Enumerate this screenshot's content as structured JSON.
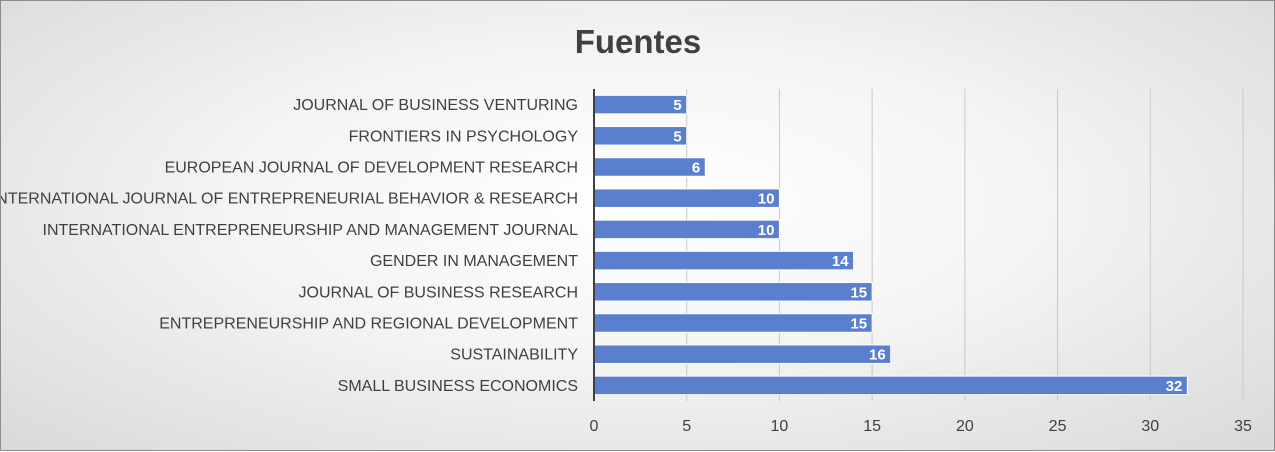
{
  "chart_data": {
    "type": "bar",
    "orientation": "horizontal",
    "title": "Fuentes",
    "categories": [
      "JOURNAL OF BUSINESS VENTURING",
      "FRONTIERS IN PSYCHOLOGY",
      "EUROPEAN JOURNAL OF DEVELOPMENT RESEARCH",
      "INTERNATIONAL JOURNAL OF ENTREPRENEURIAL BEHAVIOR & RESEARCH",
      "INTERNATIONAL ENTREPRENEURSHIP AND MANAGEMENT JOURNAL",
      "GENDER IN MANAGEMENT",
      "JOURNAL OF BUSINESS RESEARCH",
      "ENTREPRENEURSHIP AND REGIONAL DEVELOPMENT",
      "SUSTAINABILITY",
      "SMALL BUSINESS ECONOMICS"
    ],
    "values": [
      5,
      5,
      6,
      10,
      10,
      14,
      15,
      15,
      16,
      32
    ],
    "xlim": [
      0,
      35
    ],
    "xticks": [
      0,
      5,
      10,
      15,
      20,
      25,
      30,
      35
    ],
    "grid": true,
    "legend": "none",
    "data_labels": true,
    "colors": {
      "bar": "#5b7fcf",
      "bar_edge": "#ffffff",
      "grid": "#c8c8c8",
      "axis": "#404040",
      "text": "#404040"
    }
  }
}
